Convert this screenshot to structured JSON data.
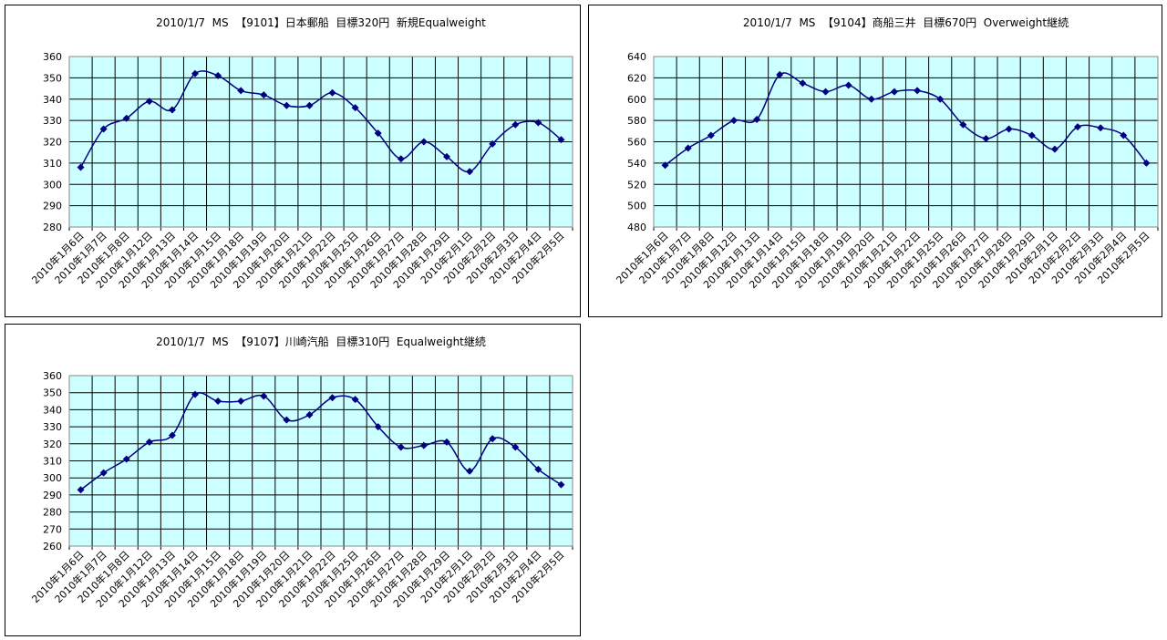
{
  "chart_data": [
    {
      "type": "line",
      "title": "2010/1/7  MS  【9101】日本郵船  目標320円  新規Equalweight",
      "categories": [
        "2010年1月6日",
        "2010年1月7日",
        "2010年1月8日",
        "2010年1月12日",
        "2010年1月13日",
        "2010年1月14日",
        "2010年1月15日",
        "2010年1月18日",
        "2010年1月19日",
        "2010年1月20日",
        "2010年1月21日",
        "2010年1月22日",
        "2010年1月25日",
        "2010年1月26日",
        "2010年1月27日",
        "2010年1月28日",
        "2010年1月29日",
        "2010年2月1日",
        "2010年2月2日",
        "2010年2月3日",
        "2010年2月4日",
        "2010年2月5日"
      ],
      "values": [
        308,
        326,
        331,
        339,
        335,
        352,
        351,
        344,
        342,
        337,
        337,
        343,
        336,
        324,
        312,
        320,
        313,
        306,
        319,
        328,
        329,
        321
      ],
      "color": "#000080",
      "ylim": [
        280,
        360
      ],
      "yticks": [
        280,
        290,
        300,
        310,
        320,
        330,
        340,
        350,
        360
      ],
      "grid": true
    },
    {
      "type": "line",
      "title": "2010/1/7  MS  【9104】商船三井  目標670円  Overweight継続",
      "categories": [
        "2010年1月6日",
        "2010年1月7日",
        "2010年1月8日",
        "2010年1月12日",
        "2010年1月13日",
        "2010年1月14日",
        "2010年1月15日",
        "2010年1月18日",
        "2010年1月19日",
        "2010年1月20日",
        "2010年1月21日",
        "2010年1月22日",
        "2010年1月25日",
        "2010年1月26日",
        "2010年1月27日",
        "2010年1月28日",
        "2010年1月29日",
        "2010年2月1日",
        "2010年2月2日",
        "2010年2月3日",
        "2010年2月4日",
        "2010年2月5日"
      ],
      "values": [
        538,
        554,
        566,
        580,
        581,
        623,
        615,
        607,
        613,
        600,
        607,
        608,
        600,
        576,
        563,
        572,
        566,
        553,
        574,
        573,
        566,
        540
      ],
      "color": "#000080",
      "ylim": [
        480,
        640
      ],
      "yticks": [
        480,
        500,
        520,
        540,
        560,
        580,
        600,
        620,
        640
      ],
      "grid": true
    },
    {
      "type": "line",
      "title": "2010/1/7  MS  【9107】川崎汽船  目標310円  Equalweight継続",
      "categories": [
        "2010年1月6日",
        "2010年1月7日",
        "2010年1月8日",
        "2010年1月12日",
        "2010年1月13日",
        "2010年1月14日",
        "2010年1月15日",
        "2010年1月18日",
        "2010年1月19日",
        "2010年1月20日",
        "2010年1月21日",
        "2010年1月22日",
        "2010年1月25日",
        "2010年1月26日",
        "2010年1月27日",
        "2010年1月28日",
        "2010年1月29日",
        "2010年2月1日",
        "2010年2月2日",
        "2010年2月3日",
        "2010年2月4日",
        "2010年2月5日"
      ],
      "values": [
        293,
        303,
        311,
        321,
        325,
        349,
        345,
        345,
        348,
        334,
        337,
        347,
        346,
        330,
        318,
        319,
        321,
        304,
        323,
        318,
        305,
        296
      ],
      "color": "#000080",
      "ylim": [
        260,
        360
      ],
      "yticks": [
        260,
        270,
        280,
        290,
        300,
        310,
        320,
        330,
        340,
        350,
        360
      ],
      "grid": true
    }
  ]
}
